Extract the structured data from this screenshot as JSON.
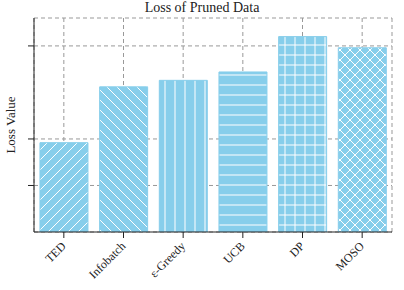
{
  "chart_data": {
    "type": "bar",
    "title": "Loss of Pruned Data",
    "y_label": "Loss Value",
    "categories": [
      "TED",
      "Infobatch",
      "ε-Greedy",
      "UCB",
      "DP",
      "MOSO"
    ],
    "values": [
      0.96,
      1.56,
      1.63,
      1.72,
      2.1,
      1.98
    ],
    "color": "#87ceeb",
    "ylim": [
      0,
      2.3
    ],
    "yticks": [
      0.5,
      1,
      2
    ],
    "grid": true,
    "tick_labels": "x"
  }
}
